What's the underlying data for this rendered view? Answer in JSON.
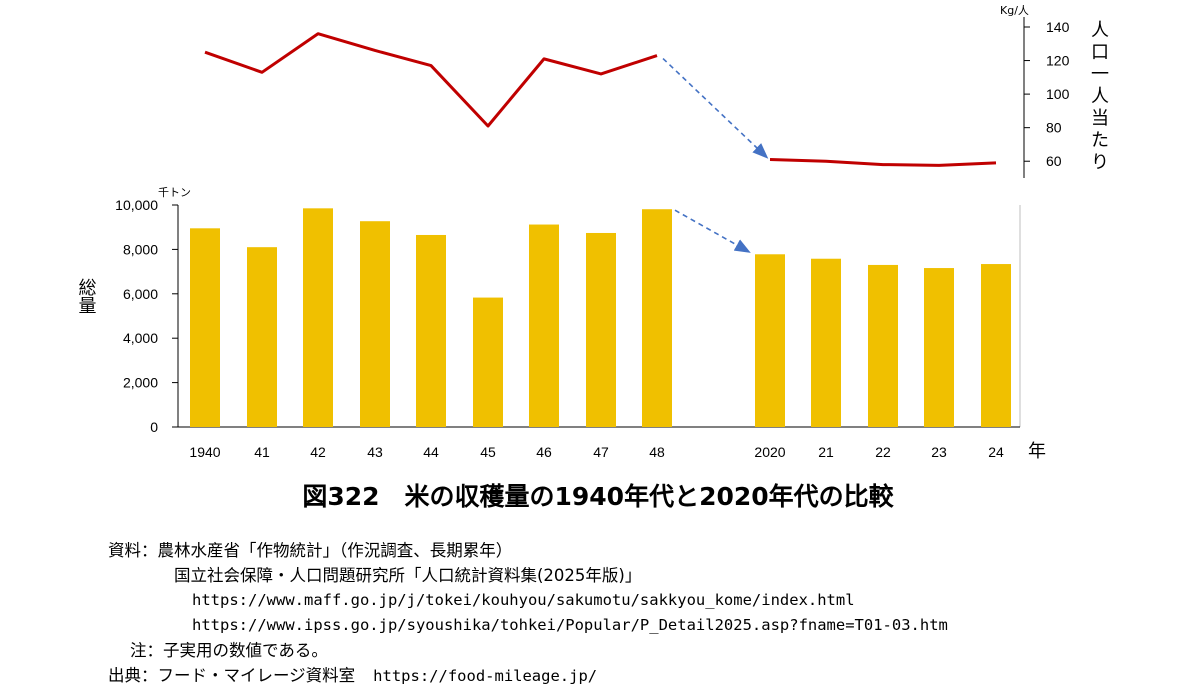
{
  "chart_data": [
    {
      "type": "line",
      "title": "",
      "ylabel": "人口一人当たり",
      "yunit": "Kg/人",
      "ylim": [
        50,
        140
      ],
      "yticks": [
        60,
        80,
        100,
        120,
        140
      ],
      "axis_side": "right",
      "color": "#c00000",
      "series": [
        {
          "period": "1940s",
          "x": [
            "1940",
            "41",
            "42",
            "43",
            "44",
            "45",
            "46",
            "47",
            "48"
          ],
          "values": [
            125,
            113,
            136,
            126,
            117,
            81,
            121,
            112,
            123
          ]
        },
        {
          "period": "2020s",
          "x": [
            "2020",
            "21",
            "22",
            "23",
            "24"
          ],
          "values": [
            61,
            60,
            58,
            57.5,
            59
          ]
        }
      ],
      "connector": {
        "from": "48",
        "to": "2020",
        "style": "dashed-arrow",
        "color": "#4472c4"
      }
    },
    {
      "type": "bar",
      "ylabel": "総量",
      "yunit": "千トン",
      "ylim": [
        0,
        10000
      ],
      "yticks": [
        0,
        2000,
        4000,
        6000,
        8000,
        10000
      ],
      "ytick_labels": [
        "0",
        "2,000",
        "4,000",
        "6,000",
        "8,000",
        "10,000"
      ],
      "color": "#f0c000",
      "categories": [
        "1940",
        "41",
        "42",
        "43",
        "44",
        "45",
        "46",
        "47",
        "48",
        "2020",
        "21",
        "22",
        "23",
        "24"
      ],
      "values": [
        8950,
        8100,
        9850,
        9270,
        8650,
        5830,
        9120,
        8740,
        9810,
        7780,
        7580,
        7300,
        7160,
        7340
      ],
      "xunit": "年",
      "connector": {
        "from": "48",
        "to": "2020",
        "style": "dashed-arrow",
        "color": "#4472c4"
      }
    }
  ],
  "figure_title": "図322　米の収穫量の1940年代と2020年代の比較",
  "notes": {
    "source_label": "資料：",
    "source_lines": [
      "農林水産省「作物統計」（作況調査、長期累年）",
      "国立社会保障・人口問題研究所「人口統計資料集(2025年版)」"
    ],
    "url1": "https://www.maff.go.jp/j/tokei/kouhyou/sakumotu/sakkyou_kome/index.html",
    "url2": "https://www.ipss.go.jp/syoushika/tohkei/Popular/P_Detail2025.asp?fname=T01-03.htm",
    "note_label": "注：",
    "note_text": "子実用の数値である。",
    "origin_label": "出典：",
    "origin_text": "フード・マイレージ資料室",
    "origin_url": "https://food-mileage.jp/"
  }
}
